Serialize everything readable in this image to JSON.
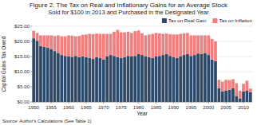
{
  "chart_data": {
    "type": "bar",
    "stacked": true,
    "title": "Figure 2. The Tax on Real and Inflationary Gains for an Average Stock",
    "subtitle": "Sold for $100 in 2013 and Purchased in the Designated Year",
    "x_label": "Year",
    "y_label": "Capital Gains Tax Owed",
    "source": "Source: Author's Calculations (See Table 1)",
    "categories": [
      "1950",
      null,
      null,
      null,
      null,
      "1955",
      null,
      null,
      null,
      null,
      "1960",
      null,
      null,
      null,
      null,
      "1965",
      null,
      null,
      null,
      null,
      "1970",
      null,
      null,
      null,
      null,
      "1975",
      null,
      null,
      null,
      null,
      "1980",
      null,
      null,
      null,
      null,
      "1985",
      null,
      null,
      null,
      null,
      "1990",
      null,
      null,
      null,
      null,
      "1995",
      null,
      null,
      null,
      null,
      "2000",
      null,
      null,
      null,
      null,
      "2005",
      null,
      null,
      null,
      null,
      "2010",
      null,
      null
    ],
    "series": [
      {
        "name": "Tax on Real Gain",
        "color": "#2E4A6B",
        "values": [
          21.0,
          20.2,
          18.5,
          18.2,
          18.0,
          17.5,
          16.8,
          16.2,
          15.5,
          15.2,
          15.0,
          14.9,
          15.2,
          14.8,
          15.0,
          14.8,
          14.5,
          14.2,
          14.8,
          14.5,
          14.0,
          15.0,
          15.5,
          15.2,
          14.8,
          14.5,
          14.8,
          15.2,
          15.0,
          15.2,
          15.8,
          15.5,
          15.0,
          14.8,
          14.5,
          15.0,
          15.2,
          15.5,
          15.8,
          15.2,
          14.8,
          14.5,
          15.0,
          15.5,
          15.8,
          15.2,
          15.5,
          16.0,
          15.8,
          16.2,
          15.5,
          14.0,
          13.5,
          4.5,
          3.5,
          3.8,
          4.0,
          4.5,
          2.0,
          1.2,
          3.5,
          3.8,
          3.2
        ]
      },
      {
        "name": "Tax on Inflation",
        "color": "#F08080",
        "values": [
          2.5,
          2.6,
          3.5,
          3.8,
          4.0,
          4.5,
          5.0,
          5.8,
          6.2,
          6.5,
          7.0,
          7.0,
          6.5,
          7.0,
          7.2,
          7.5,
          8.0,
          8.2,
          7.8,
          8.0,
          8.5,
          7.5,
          7.0,
          8.0,
          9.0,
          8.5,
          8.2,
          8.0,
          7.8,
          8.2,
          7.8,
          7.2,
          7.0,
          7.5,
          8.0,
          7.8,
          7.5,
          7.0,
          6.8,
          7.2,
          7.5,
          7.8,
          7.5,
          7.2,
          7.0,
          6.8,
          6.5,
          6.0,
          6.2,
          5.8,
          6.5,
          6.8,
          6.5,
          2.8,
          3.2,
          3.5,
          3.2,
          3.0,
          4.2,
          2.5,
          2.5,
          3.2,
          1.2
        ]
      }
    ],
    "ylim": [
      0,
      25
    ],
    "yticks": [
      {
        "value": 0,
        "label": "$0.00"
      },
      {
        "value": 5,
        "label": "$5.00"
      },
      {
        "value": 10,
        "label": "$10.00"
      },
      {
        "value": 15,
        "label": "$15.00"
      },
      {
        "value": 20,
        "label": "$20.00"
      },
      {
        "value": 25,
        "label": "$25.00"
      }
    ],
    "grid": true,
    "legend": "upper right"
  }
}
